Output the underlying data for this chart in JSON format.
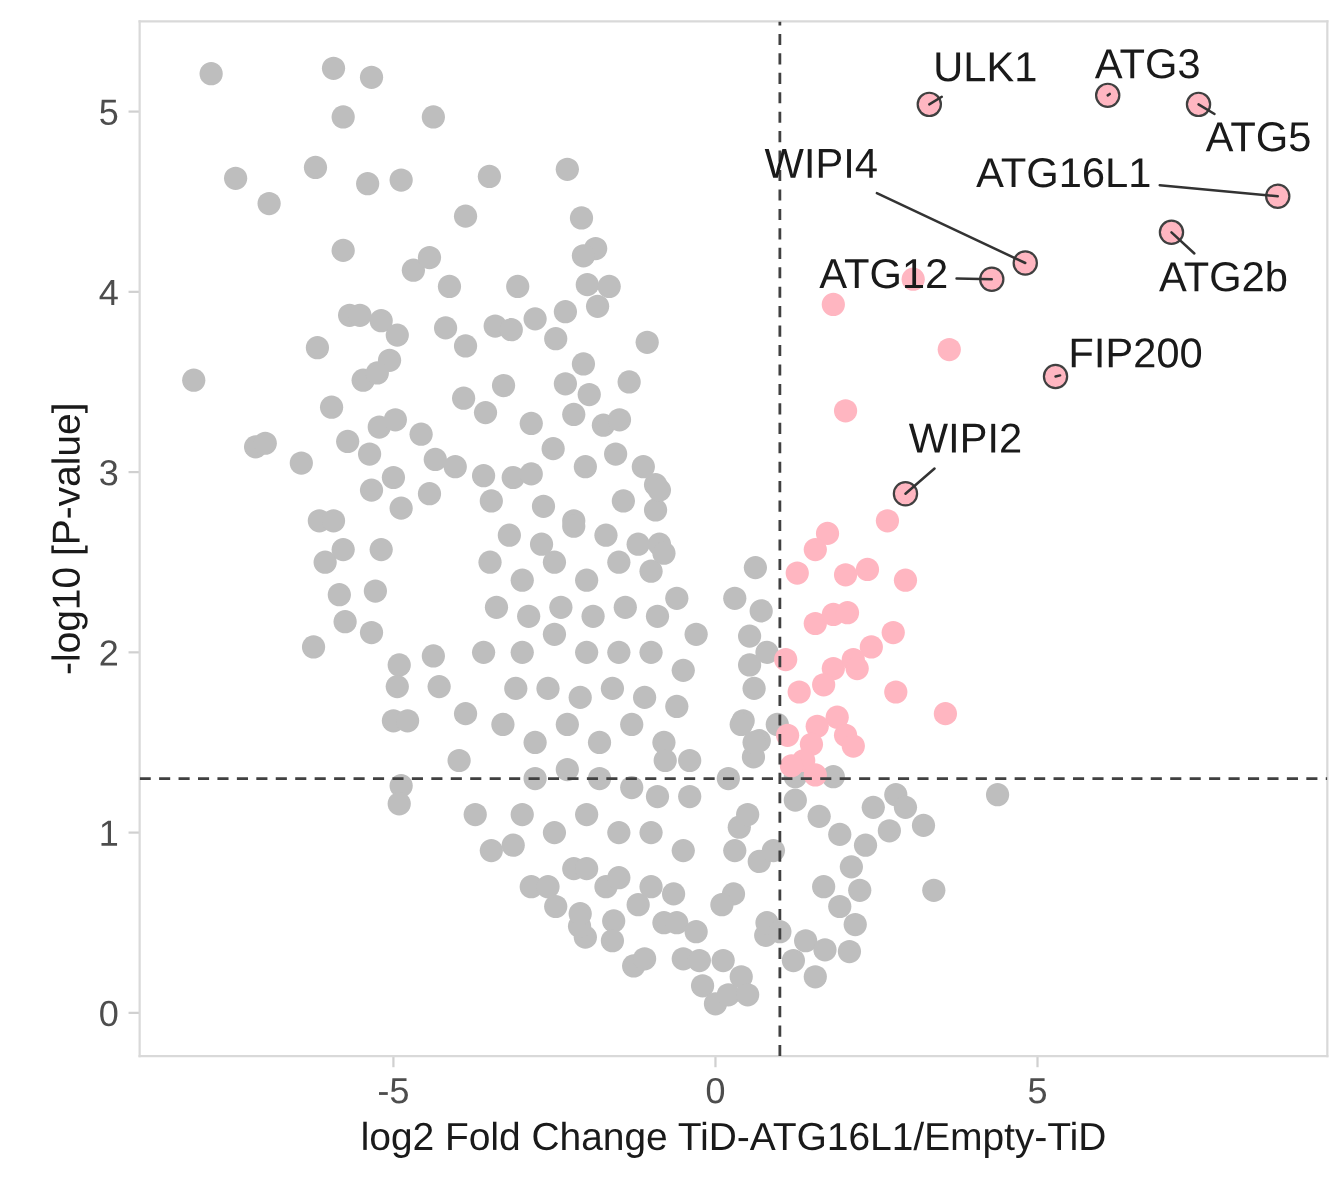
{
  "chart_data": {
    "type": "scatter",
    "xlabel": "log2 Fold Change TiD-ATG16L1/Empty-TiD",
    "ylabel": "-log10 [P-value]",
    "xlim": [
      -8.94,
      9.5
    ],
    "ylim": [
      -0.24,
      5.5
    ],
    "xticks": [
      {
        "value": -5,
        "label": "-5"
      },
      0,
      5
    ],
    "yticks": [
      0,
      1,
      2,
      3,
      4,
      5
    ],
    "grid": false,
    "legend": false,
    "marker": "circle",
    "ref_lines": [
      {
        "axis": "x",
        "value": 1,
        "color": "#404040",
        "line_style": "dashed"
      },
      {
        "axis": "y",
        "value": 1.3,
        "color": "#404040",
        "line_style": "dashed"
      }
    ],
    "series": [
      {
        "color": "#bebebe",
        "x": [
          -7.83,
          -5.93,
          -5.34,
          -5.78,
          -4.38,
          -7.45,
          -6.93,
          -6.21,
          -5.4,
          -4.88,
          -3.51,
          -2.3,
          -3.88,
          -2.08,
          -5.78,
          -4.69,
          -4.44,
          -4.13,
          -3.07,
          -1.86,
          -2.05,
          -1.99,
          -1.65,
          -1.83,
          -8.1,
          -6.18,
          -5.68,
          -5.52,
          -5.19,
          -4.94,
          -5.06,
          -5.47,
          -5.25,
          -4.19,
          -3.88,
          -3.42,
          -3.17,
          -2.8,
          -2.33,
          -2.48,
          -2.05,
          -2.33,
          -3.29,
          -1.06,
          -1.34,
          -7.14,
          -6.99,
          -6.43,
          -5.96,
          -5.71,
          -5.22,
          -4.97,
          -5.37,
          -4.57,
          -3.91,
          -4.35,
          -3.57,
          -2.86,
          -2.52,
          -2.2,
          -1.96,
          -1.74,
          -1.49,
          -2.02,
          -1.55,
          -1.12,
          -6.15,
          -5.93,
          -6.06,
          -5.78,
          -5.34,
          -5.0,
          -4.88,
          -5.19,
          -4.44,
          -4.04,
          -3.6,
          -3.48,
          -3.14,
          -2.86,
          -2.67,
          -2.2,
          -1.43,
          -0.93,
          -0.93,
          -6.24,
          -5.75,
          -5.34,
          -5.84,
          -5.28,
          -4.91,
          -4.94,
          -5.0,
          -4.78,
          -4.88,
          -4.91,
          -4.38,
          -3.98,
          -3.73,
          -3.48,
          -3.14,
          -2.86,
          -2.48,
          -2.02,
          -1.27,
          -2.11,
          -1.58,
          -4.29,
          -3.88,
          -3.5,
          -3.0,
          -2.5,
          -2.0,
          -1.5,
          -1.0,
          -0.6,
          -3.6,
          -3.0,
          -2.5,
          -2.0,
          -1.5,
          -1.0,
          -0.5,
          -3.3,
          -2.8,
          -2.3,
          -1.8,
          -1.3,
          -0.8,
          -0.4,
          -3.0,
          -2.5,
          -2.0,
          -1.5,
          -1.0,
          -0.5,
          -2.2,
          -1.7,
          -1.2,
          -0.8,
          -0.5,
          -0.2,
          0,
          0.2,
          0.4,
          0.62,
          0.71,
          0.53,
          0.53,
          0.43,
          0.96,
          0.68,
          0.59,
          1.24,
          1.83,
          1.24,
          2.8,
          2.95,
          2.45,
          4.38,
          3.23,
          2.7,
          2.33,
          1.61,
          1.93,
          3.39,
          2.11,
          2.24,
          1.68,
          1.93,
          2.17,
          2.08,
          1.55,
          1.21,
          0.37,
          0.28,
          0.12,
          -0.25,
          -0.65,
          -0.78,
          0.68,
          0.78,
          -0.87,
          -0.87,
          -3.2,
          -2.7,
          -2.2,
          -1.7,
          -1.2,
          -0.8,
          -3.4,
          -2.9,
          -2.4,
          -1.9,
          -1.4,
          -0.9,
          -0.3,
          -3.1,
          -2.6,
          -2.1,
          -1.6,
          -1.1,
          -0.6,
          -2.8,
          -2.3,
          -1.8,
          -1.3,
          -0.9,
          -0.4,
          -2.0,
          -1.5,
          -1.0,
          -0.6,
          -0.3,
          0.1,
          0.3,
          0.5,
          0.2,
          0.4,
          0.6,
          0.8,
          0.3,
          0.6,
          0.9,
          0.5,
          0.8,
          1.0,
          1.4,
          1.7,
          -2.6,
          -2.1,
          -1.6,
          -1.1
        ],
        "values": [
          5.21,
          5.24,
          5.19,
          4.97,
          4.97,
          4.63,
          4.49,
          4.69,
          4.6,
          4.62,
          4.64,
          4.68,
          4.42,
          4.41,
          4.23,
          4.12,
          4.19,
          4.03,
          4.03,
          4.24,
          4.2,
          4.04,
          4.03,
          3.92,
          3.51,
          3.69,
          3.87,
          3.87,
          3.84,
          3.76,
          3.62,
          3.51,
          3.55,
          3.8,
          3.7,
          3.81,
          3.79,
          3.85,
          3.89,
          3.74,
          3.6,
          3.49,
          3.48,
          3.72,
          3.5,
          3.14,
          3.16,
          3.05,
          3.36,
          3.17,
          3.25,
          3.29,
          3.1,
          3.21,
          3.41,
          3.07,
          3.33,
          3.27,
          3.13,
          3.32,
          3.43,
          3.26,
          3.29,
          3.03,
          3.1,
          3.03,
          2.73,
          2.73,
          2.5,
          2.57,
          2.9,
          2.97,
          2.8,
          2.57,
          2.88,
          3.03,
          2.98,
          2.84,
          2.97,
          2.99,
          2.81,
          2.73,
          2.84,
          2.93,
          2.79,
          2.03,
          2.17,
          2.11,
          2.32,
          2.34,
          1.93,
          1.81,
          1.62,
          1.62,
          1.26,
          1.16,
          1.98,
          1.4,
          1.1,
          0.9,
          0.93,
          0.7,
          0.59,
          0.42,
          0.26,
          0.48,
          0.51,
          1.81,
          1.66,
          2.5,
          2.4,
          2.5,
          2.4,
          2.5,
          2.45,
          2.3,
          2.0,
          2.0,
          2.1,
          2.0,
          2.0,
          2.0,
          1.9,
          1.6,
          1.5,
          1.6,
          1.5,
          1.6,
          1.5,
          1.4,
          1.1,
          1.0,
          1.1,
          1.0,
          1.0,
          0.9,
          0.8,
          0.7,
          0.6,
          0.5,
          0.3,
          0.15,
          0.05,
          0.1,
          0.2,
          2.47,
          2.23,
          2.09,
          1.93,
          1.62,
          1.6,
          1.51,
          1.42,
          1.31,
          1.31,
          1.18,
          1.21,
          1.14,
          1.14,
          1.21,
          1.04,
          1.01,
          0.93,
          1.09,
          0.99,
          0.68,
          0.81,
          0.68,
          0.7,
          0.59,
          0.49,
          0.34,
          0.2,
          0.29,
          1.03,
          0.66,
          0.29,
          0.29,
          0.66,
          1.4,
          0.84,
          0.43,
          2.9,
          2.6,
          2.65,
          2.6,
          2.7,
          2.65,
          2.6,
          2.55,
          2.25,
          2.2,
          2.25,
          2.2,
          2.25,
          2.2,
          2.1,
          1.8,
          1.8,
          1.75,
          1.8,
          1.75,
          1.7,
          1.3,
          1.35,
          1.3,
          1.25,
          1.2,
          1.2,
          0.8,
          0.75,
          0.7,
          0.5,
          0.45,
          0.6,
          0.9,
          1.1,
          1.3,
          1.6,
          1.8,
          2.0,
          2.3,
          1.5,
          0.9,
          0.1,
          0.5,
          0.45,
          0.4,
          0.35,
          0.7,
          0.55,
          0.4,
          0.3
        ]
      },
      {
        "color": "#ffb6c1",
        "x": [
          1.83,
          3.63,
          2.02,
          2.67,
          1.74,
          1.55,
          1.27,
          2.02,
          2.36,
          2.95,
          3.07,
          1.55,
          1.83,
          2.05,
          2.76,
          2.42,
          1.09,
          1.83,
          2.14,
          1.68,
          2.2,
          1.3,
          2.8,
          3.57,
          1.89,
          1.58,
          1.12,
          2.02,
          2.14,
          1.49,
          1.37,
          1.18,
          1.55
        ],
        "values": [
          3.93,
          3.68,
          3.34,
          2.73,
          2.66,
          2.57,
          2.44,
          2.43,
          2.46,
          2.4,
          4.07,
          2.16,
          2.21,
          2.22,
          2.11,
          2.03,
          1.96,
          1.91,
          1.96,
          1.82,
          1.91,
          1.78,
          1.78,
          1.66,
          1.64,
          1.59,
          1.54,
          1.54,
          1.48,
          1.49,
          1.4,
          1.37,
          1.32
        ]
      },
      {
        "color": "#ffb6c1",
        "x": [
          3.32,
          6.09,
          7.5,
          8.73,
          7.08,
          4.81,
          4.29,
          5.28,
          2.95
        ],
        "values": [
          5.04,
          5.09,
          5.04,
          4.53,
          4.33,
          4.16,
          4.07,
          3.53,
          2.88
        ]
      }
    ],
    "annotations": [
      {
        "text": "ULK1",
        "x": 3.32,
        "y": 5.04
      },
      {
        "text": "ATG3",
        "x": 6.09,
        "y": 5.09
      },
      {
        "text": "ATG5",
        "x": 7.5,
        "y": 5.04
      },
      {
        "text": "ATG16L1",
        "x": 8.73,
        "y": 4.53
      },
      {
        "text": "ATG2b",
        "x": 7.08,
        "y": 4.33
      },
      {
        "text": "WIPI4",
        "x": 4.81,
        "y": 4.16
      },
      {
        "text": "ATG12",
        "x": 4.29,
        "y": 4.07
      },
      {
        "text": "FIP200",
        "x": 5.28,
        "y": 3.53
      },
      {
        "text": "WIPI2",
        "x": 2.95,
        "y": 2.88
      }
    ]
  }
}
